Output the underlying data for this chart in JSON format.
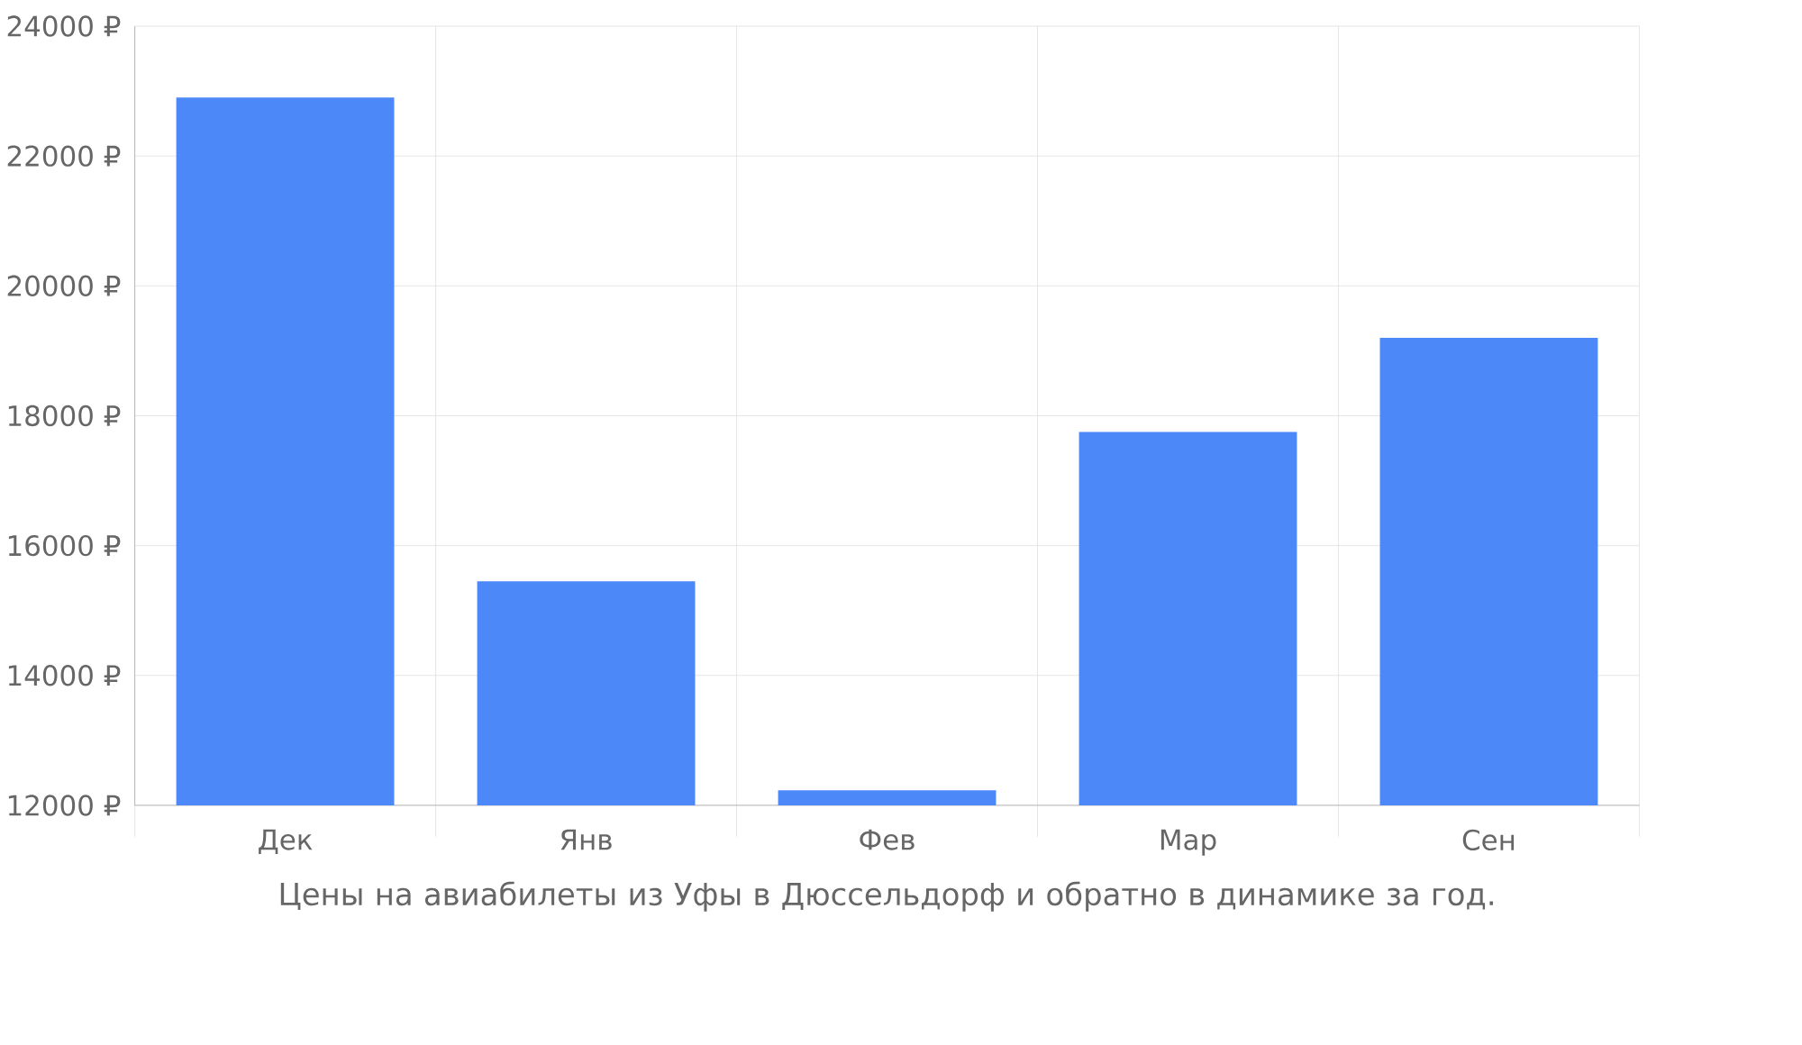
{
  "chart_data": {
    "type": "bar",
    "xlabel": "Цены на авиабилеты из Уфы в Дюссельдорф и обратно в динамике за год.",
    "categories": [
      "Дек",
      "Янв",
      "Фев",
      "Мар",
      "Сен"
    ],
    "values": [
      22900,
      15450,
      12230,
      17750,
      19200
    ],
    "color": "#4d88f9",
    "ylim": [
      12000,
      24000
    ],
    "yticks": [
      {
        "value": 12000,
        "label": "12000 ₽"
      },
      {
        "value": 14000,
        "label": "14000 ₽"
      },
      {
        "value": 16000,
        "label": "16000 ₽"
      },
      {
        "value": 18000,
        "label": "18000 ₽"
      },
      {
        "value": 20000,
        "label": "20000 ₽"
      },
      {
        "value": 22000,
        "label": "22000 ₽"
      },
      {
        "value": 24000,
        "label": "24000 ₽"
      }
    ],
    "grid": true
  }
}
